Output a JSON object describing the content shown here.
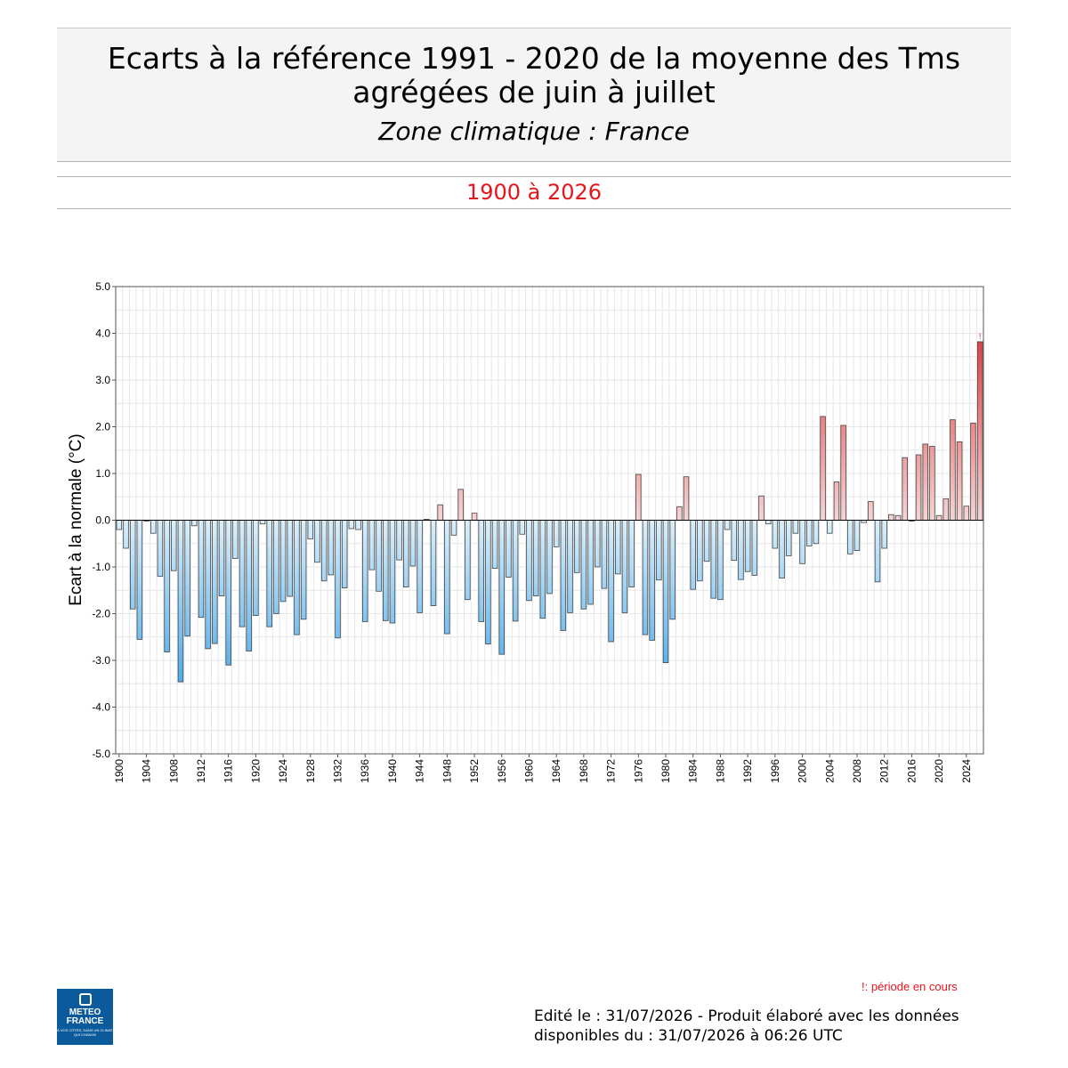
{
  "header": {
    "title_line1": "Ecarts à la référence 1991 - 2020 de la moyenne des Tms",
    "title_line2": "agrégées de juin à juillet",
    "subtitle": "Zone climatique : France",
    "period": "1900 à 2026"
  },
  "legend_note": "!: période en cours",
  "footer": {
    "line1": "Edité le : 31/07/2026 - Produit élaboré avec les données",
    "line2": "disponibles du : 31/07/2026 à 06:26 UTC"
  },
  "logo": {
    "line1": "METEO",
    "line2": "FRANCE",
    "tagline": "À VOS CÔTÉS, DANS UN CLIMAT QUI CHANGE"
  },
  "colors": {
    "positive": "#e03c3c",
    "negative": "#46a8ea",
    "current_marker": "#e8141c"
  },
  "chart_data": {
    "type": "bar",
    "title": "Ecarts à la référence 1991 - 2020 de la moyenne des Tms agrégées de juin à juillet",
    "ylabel": "Ecart à la normale (°C)",
    "xlabel": "",
    "ylim": [
      -5,
      5
    ],
    "yticks": [
      "5.0",
      "4.0",
      "3.0",
      "2.0",
      "1.0",
      "0.0",
      "-1.0",
      "-2.0",
      "-3.0",
      "-4.0",
      "-5.0"
    ],
    "xticks": [
      "1900",
      "1904",
      "1908",
      "1912",
      "1916",
      "1920",
      "1924",
      "1928",
      "1932",
      "1936",
      "1940",
      "1944",
      "1948",
      "1952",
      "1956",
      "1960",
      "1964",
      "1968",
      "1972",
      "1976",
      "1980",
      "1984",
      "1988",
      "1992",
      "1996",
      "2000",
      "2004",
      "2008",
      "2012",
      "2016",
      "2020",
      "2024"
    ],
    "grid": true,
    "current_period_marker": "!",
    "x_start": 1900,
    "x_end": 2026,
    "values": [
      -0.2,
      -0.6,
      -1.9,
      -2.55,
      -0.02,
      -0.28,
      -1.2,
      -2.82,
      -1.08,
      -3.46,
      -2.48,
      -0.12,
      -2.08,
      -2.75,
      -2.64,
      -1.62,
      -3.1,
      -0.82,
      -2.28,
      -2.8,
      -2.04,
      -0.08,
      -2.28,
      -2.0,
      -1.74,
      -1.63,
      -2.45,
      -2.12,
      -0.4,
      -0.9,
      -1.3,
      -1.17,
      -2.52,
      -1.45,
      -0.18,
      -0.2,
      -2.17,
      -1.06,
      -1.52,
      -2.15,
      -2.2,
      -0.85,
      -1.43,
      -0.98,
      -1.98,
      0.02,
      -1.83,
      0.33,
      -2.43,
      -0.32,
      0.66,
      -1.7,
      0.15,
      -2.17,
      -2.65,
      -1.03,
      -2.87,
      -1.22,
      -2.16,
      -0.3,
      -1.72,
      -1.62,
      -2.1,
      -1.57,
      -0.57,
      -2.36,
      -1.98,
      -1.12,
      -1.9,
      -1.8,
      -1.0,
      -1.46,
      -2.6,
      -1.15,
      -1.98,
      -1.43,
      0.98,
      -2.45,
      -2.57,
      -1.28,
      -3.05,
      -2.12,
      0.29,
      0.93,
      -1.48,
      -1.3,
      -0.88,
      -1.67,
      -1.7,
      -0.2,
      -0.86,
      -1.27,
      -1.1,
      -1.18,
      0.52,
      -0.08,
      -0.6,
      -1.24,
      -0.76,
      -0.28,
      -0.93,
      -0.55,
      -0.5,
      2.22,
      -0.28,
      0.82,
      2.03,
      -0.72,
      -0.65,
      -0.05,
      0.4,
      -1.32,
      -0.6,
      0.12,
      0.1,
      1.34,
      -0.02,
      1.4,
      1.63,
      1.58,
      0.1,
      0.46,
      2.15,
      1.68,
      0.3,
      2.08,
      3.82
    ]
  }
}
